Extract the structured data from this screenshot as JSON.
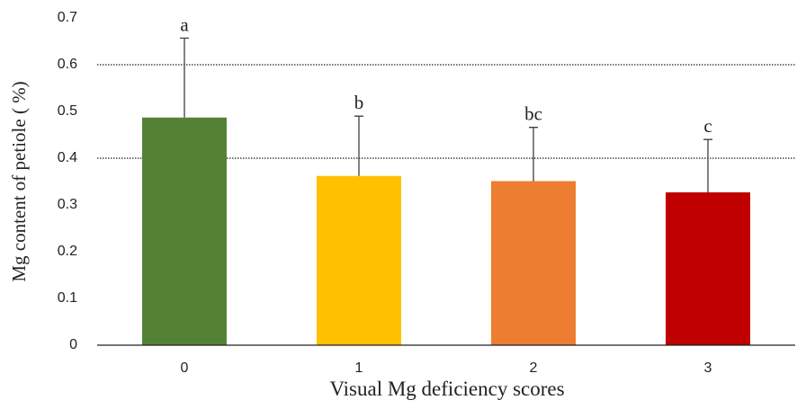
{
  "chart_data": {
    "type": "bar",
    "x_label": "Visual Mg deficiency scores",
    "y_label": "Mg content of petiole ( %)",
    "categories": [
      "0",
      "1",
      "2",
      "3"
    ],
    "values": [
      0.487,
      0.362,
      0.351,
      0.327
    ],
    "errors": [
      0.17,
      0.128,
      0.115,
      0.113
    ],
    "annotations": [
      "a",
      "b",
      "bc",
      "c"
    ],
    "colors": [
      "#548235",
      "#ffc000",
      "#ed7d31",
      "#c00000"
    ],
    "ylim": [
      0,
      0.7
    ],
    "yticks": [
      0,
      0.1,
      0.2,
      0.3,
      0.4,
      0.5,
      0.6,
      0.7
    ],
    "grid_lines": [
      0.4,
      0.6
    ]
  }
}
